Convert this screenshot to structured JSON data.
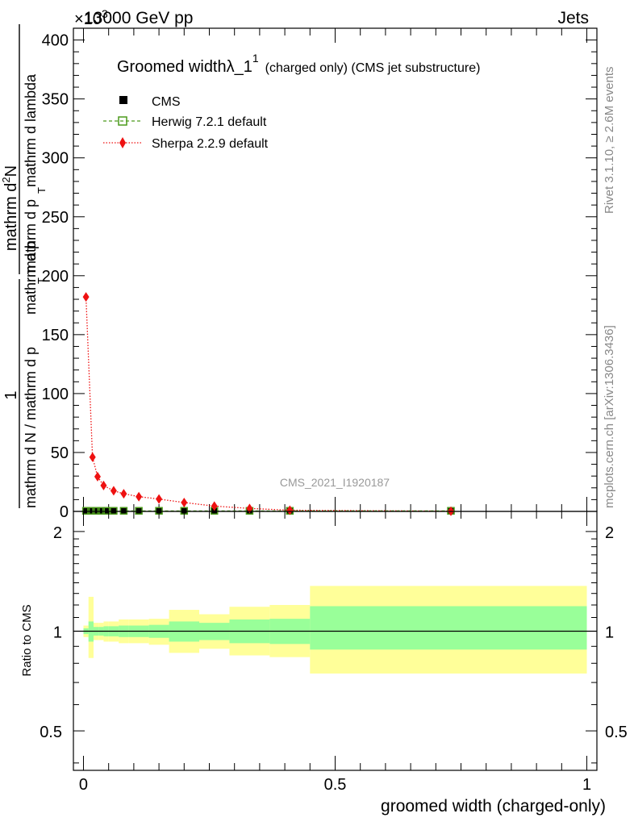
{
  "header": {
    "energy_label": "13000 GeV pp",
    "process_label": "Jets",
    "exponent_label": "×10",
    "exponent_power": "3"
  },
  "side_labels": {
    "rivet": "Rivet 3.1.10, ≥ 2.6M events",
    "mcplots": "mcplots.cern.ch [arXiv:1306.3436]"
  },
  "analysis_id": "CMS_2021_I1920187",
  "main_plot": {
    "title": "Groomed width",
    "title_symbol": "λ_1",
    "title_superscript": "1",
    "title_suffix": "(charged only) (CMS jet substructure)",
    "ylabel_num_prefix": "1",
    "ylabel_den": "mathrm d N / mathrm d p",
    "ylabel_num_main": "mathrm d",
    "ylabel_num_sup": "2",
    "ylabel_num_n": "N",
    "ylabel_main_a": "mathrm d p",
    "ylabel_main_b": "mathrm d lambda",
    "ylabel_sub_t": "T"
  },
  "ratio_plot": {
    "ylabel": "Ratio to CMS",
    "xlabel": "groomed width (charged-only)"
  },
  "legend": [
    {
      "label": "CMS",
      "marker": "filled-square",
      "color": "#000000"
    },
    {
      "label": "Herwig 7.2.1 default",
      "marker": "open-square-dashed",
      "color": "#4c9a1c"
    },
    {
      "label": "Sherpa 2.2.9 default",
      "marker": "diamond-dotted",
      "color": "#ee1111"
    }
  ],
  "chart_data": [
    {
      "type": "line",
      "name": "main",
      "xlim": [
        -0.02,
        1.02
      ],
      "ylim": [
        0,
        410
      ],
      "y_scale_factor": 1000,
      "yticks": [
        0,
        50,
        100,
        150,
        200,
        250,
        300,
        350,
        400
      ],
      "ytick_labels": [
        "0",
        "50",
        "100",
        "150",
        "200",
        "250",
        "300",
        "350",
        "400"
      ],
      "xticks": [
        0,
        0.5,
        1
      ],
      "series": [
        {
          "name": "CMS",
          "color": "#000000",
          "x": [
            0.005,
            0.015,
            0.025,
            0.035,
            0.045,
            0.06,
            0.08,
            0.11,
            0.15,
            0.2,
            0.26,
            0.33,
            0.41,
            0.73
          ],
          "y": [
            0.5,
            0.5,
            0.5,
            0.5,
            0.5,
            0.5,
            0.5,
            0.5,
            0.5,
            0.5,
            0.5,
            0.5,
            0.5,
            0.5
          ]
        },
        {
          "name": "Herwig 7.2.1 default",
          "color": "#4c9a1c",
          "x": [
            0.005,
            0.015,
            0.025,
            0.035,
            0.045,
            0.06,
            0.08,
            0.11,
            0.15,
            0.2,
            0.26,
            0.33,
            0.41,
            0.73
          ],
          "y": [
            0.5,
            0.5,
            0.5,
            0.5,
            0.5,
            0.5,
            0.5,
            0.5,
            0.5,
            0.5,
            0.5,
            0.5,
            0.5,
            0.5
          ]
        },
        {
          "name": "Sherpa 2.2.9 default",
          "color": "#ee1111",
          "x": [
            0.005,
            0.018,
            0.028,
            0.04,
            0.06,
            0.08,
            0.11,
            0.15,
            0.2,
            0.26,
            0.33,
            0.41,
            0.73
          ],
          "y": [
            182,
            46,
            29.5,
            22,
            17.5,
            15,
            12.5,
            10.5,
            7.5,
            4.5,
            2.5,
            1.0,
            0.2
          ]
        }
      ]
    },
    {
      "type": "area",
      "name": "ratio",
      "xlim": [
        -0.02,
        1.02
      ],
      "ylim_log": [
        0.38,
        2.3
      ],
      "yticks": [
        0.5,
        1,
        2
      ],
      "ytick_labels": [
        "0.5",
        "1",
        "2"
      ],
      "xticks": [
        0,
        0.5,
        1
      ],
      "xtick_labels": [
        "0",
        "0.5",
        "1"
      ],
      "reference_line": 1,
      "bands": [
        {
          "name": "stat",
          "color": "#99ff99",
          "edges": [
            0.0,
            0.01,
            0.02,
            0.03,
            0.04,
            0.05,
            0.07,
            0.09,
            0.13,
            0.17,
            0.23,
            0.29,
            0.37,
            0.45,
            1.0
          ],
          "lo": [
            0.98,
            0.93,
            0.97,
            0.97,
            0.965,
            0.965,
            0.96,
            0.96,
            0.955,
            0.93,
            0.94,
            0.92,
            0.915,
            0.88
          ],
          "hi": [
            1.02,
            1.07,
            1.03,
            1.03,
            1.035,
            1.035,
            1.04,
            1.04,
            1.045,
            1.07,
            1.06,
            1.085,
            1.09,
            1.19
          ]
        },
        {
          "name": "syst",
          "color": "#ffff99",
          "edges": [
            0.0,
            0.01,
            0.02,
            0.03,
            0.04,
            0.05,
            0.07,
            0.09,
            0.13,
            0.17,
            0.23,
            0.29,
            0.37,
            0.45,
            1.0
          ],
          "lo": [
            0.96,
            0.83,
            0.94,
            0.94,
            0.93,
            0.93,
            0.92,
            0.92,
            0.91,
            0.86,
            0.885,
            0.845,
            0.835,
            0.745
          ],
          "hi": [
            1.04,
            1.27,
            1.06,
            1.06,
            1.07,
            1.07,
            1.085,
            1.085,
            1.09,
            1.16,
            1.125,
            1.185,
            1.2,
            1.37
          ]
        }
      ]
    }
  ]
}
